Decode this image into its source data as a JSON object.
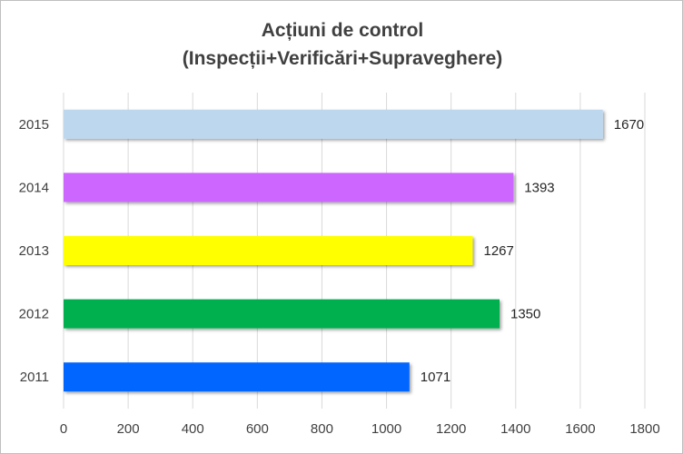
{
  "chart_data": {
    "type": "bar",
    "orientation": "horizontal",
    "title": "Acțiuni de control",
    "subtitle": "(Inspecții+Verificări+Supraveghere)",
    "categories": [
      "2011",
      "2012",
      "2013",
      "2014",
      "2015"
    ],
    "values": [
      1071,
      1350,
      1267,
      1393,
      1670
    ],
    "colors": [
      "#0066ff",
      "#00b050",
      "#ffff00",
      "#cc66ff",
      "#bdd7ee"
    ],
    "xlim": [
      0,
      1800
    ],
    "xticks": [
      "0",
      "200",
      "400",
      "600",
      "800",
      "1000",
      "1200",
      "1400",
      "1600",
      "1800"
    ],
    "grid": "vertical",
    "legend": "none",
    "data_labels": true
  }
}
